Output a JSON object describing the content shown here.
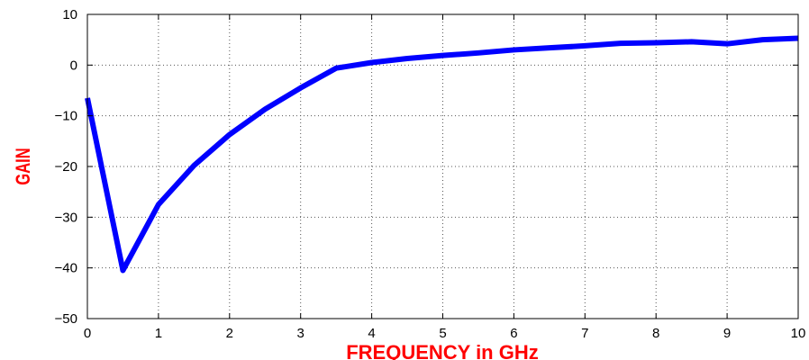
{
  "chart_data": {
    "type": "line",
    "title": "",
    "xlabel": "FREQUENCY in GHz",
    "ylabel": "GAIN",
    "xlim": [
      0,
      10
    ],
    "ylim": [
      -50,
      10
    ],
    "xticks": [
      0,
      1,
      2,
      3,
      4,
      5,
      6,
      7,
      8,
      9,
      10
    ],
    "yticks": [
      10,
      0,
      -10,
      -20,
      -30,
      -40,
      -50
    ],
    "xtick_labels": [
      "0",
      "1",
      "2",
      "3",
      "4",
      "5",
      "6",
      "7",
      "8",
      "9",
      "10"
    ],
    "ytick_labels": [
      "10",
      "0",
      "−10",
      "−20",
      "−30",
      "−40",
      "−50"
    ],
    "grid": true,
    "series": [
      {
        "color": "#0000ff",
        "x": [
          0.0,
          0.5,
          1.0,
          1.5,
          2.0,
          2.5,
          3.0,
          3.5,
          4.0,
          4.5,
          5.0,
          5.5,
          6.0,
          6.5,
          7.0,
          7.5,
          8.0,
          8.5,
          9.0,
          9.5,
          10.0
        ],
        "y": [
          -6.5,
          -40.5,
          -27.5,
          -19.8,
          -13.7,
          -8.7,
          -4.5,
          -0.6,
          0.5,
          1.3,
          1.9,
          2.4,
          3.0,
          3.4,
          3.8,
          4.3,
          4.4,
          4.6,
          4.2,
          5.0,
          5.3
        ]
      }
    ]
  }
}
